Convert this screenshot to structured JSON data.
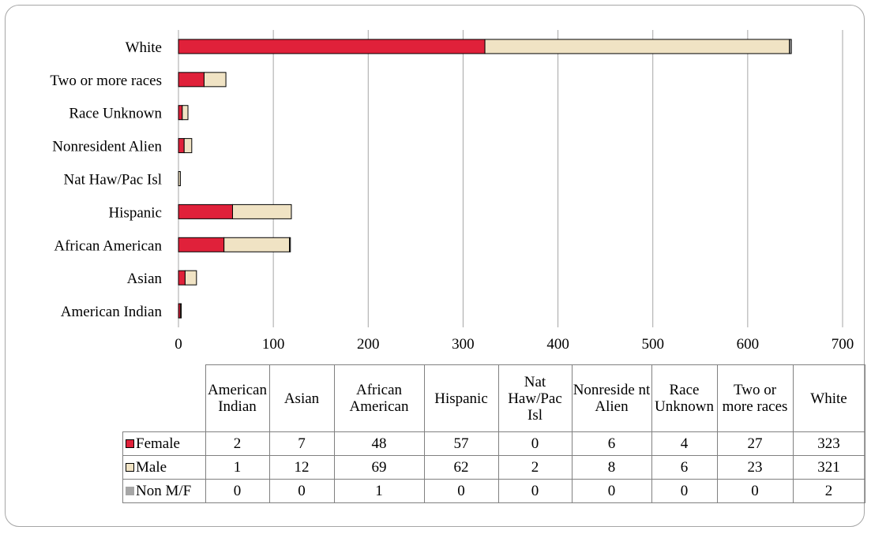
{
  "colors": {
    "Female": "#e0213a",
    "Male": "#f0e3c4",
    "Non M/F": "#a6a6a6",
    "gridline": "#a6a6a6",
    "bar_border": "#000000"
  },
  "chart_data": {
    "type": "bar",
    "orientation": "horizontal",
    "stacked": true,
    "title": "",
    "xlabel": "",
    "ylabel": "",
    "xlim": [
      0,
      700
    ],
    "xticks": [
      0,
      100,
      200,
      300,
      400,
      500,
      600,
      700
    ],
    "grid": true,
    "legend": "table",
    "categories": [
      "American Indian",
      "Asian",
      "African American",
      "Hispanic",
      "Nat Haw/Pac Isl",
      "Nonresident Alien",
      "Race Unknown",
      "Two or more races",
      "White"
    ],
    "table_headers": [
      "American Indian",
      "Asian",
      "African American",
      "Hispanic",
      "Nat Haw/Pac Isl",
      "Nonreside nt Alien",
      "Race Unknown",
      "Two or more races",
      "White"
    ],
    "series": [
      {
        "name": "Female",
        "values": [
          2,
          7,
          48,
          57,
          0,
          6,
          4,
          27,
          323
        ]
      },
      {
        "name": "Male",
        "values": [
          1,
          12,
          69,
          62,
          2,
          8,
          6,
          23,
          321
        ]
      },
      {
        "name": "Non M/F",
        "values": [
          0,
          0,
          1,
          0,
          0,
          0,
          0,
          0,
          2
        ]
      }
    ]
  }
}
